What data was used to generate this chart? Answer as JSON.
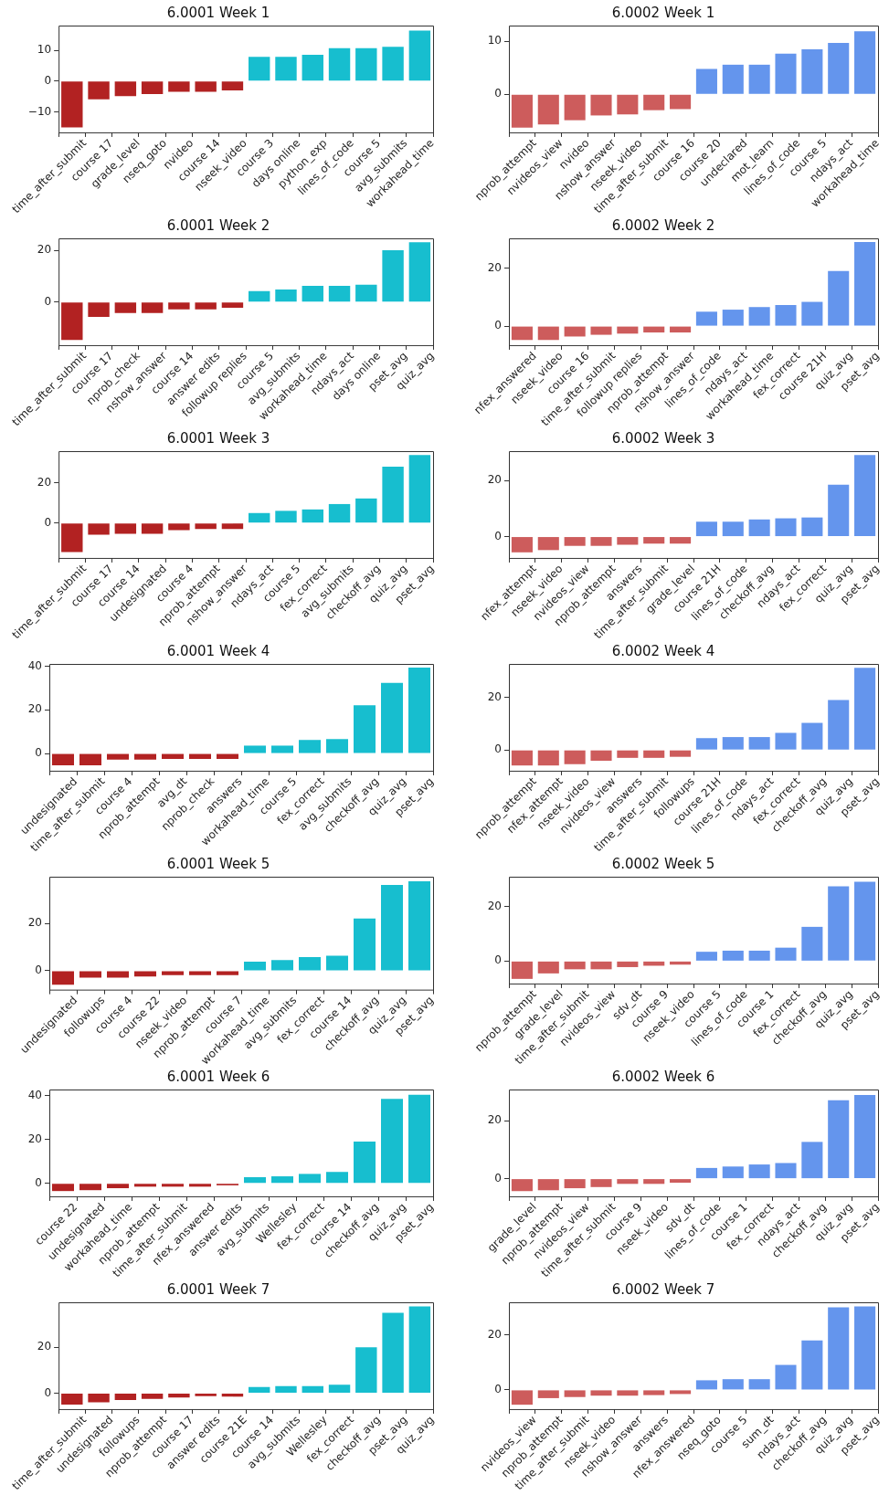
{
  "chart_data": [
    {
      "type": "bar",
      "title": "6.0001 Week 1",
      "categories": [
        "time_after_submit",
        "course 17",
        "grade_level",
        "nseq_goto",
        "nvideo",
        "course 14",
        "nseek_video",
        "course 3",
        "days online",
        "python_exp",
        "lines_of_code",
        "course 5",
        "avg_submits",
        "workahead_time"
      ],
      "values": [
        -15.1,
        -5.9,
        -4.9,
        -4.2,
        -3.5,
        -3.5,
        -3.0,
        7.9,
        7.9,
        8.6,
        10.7,
        10.7,
        11.2,
        16.5
      ],
      "colors": [
        "#b22222",
        "#b22222",
        "#b22222",
        "#b22222",
        "#b22222",
        "#b22222",
        "#b22222",
        "#17becf",
        "#17becf",
        "#17becf",
        "#17becf",
        "#17becf",
        "#17becf",
        "#17becf"
      ],
      "ylim": [
        -16.7,
        18.1
      ],
      "yticks": [
        {
          "value": -10,
          "label": "−10"
        },
        0,
        10
      ],
      "grid": false
    },
    {
      "type": "bar",
      "title": "6.0002 Week 1",
      "categories": [
        "nprob_attempt",
        "nvideos_view",
        "nvideo",
        "nshow_answer",
        "nseek_video",
        "time_after_submit",
        "course 16",
        "course 20",
        "undeclared",
        "mot_learn",
        "lines_of_code",
        "course 5",
        "ndays_act",
        "workahead_time"
      ],
      "values": [
        -6.3,
        -5.7,
        -4.9,
        -4.0,
        -3.8,
        -3.0,
        -2.8,
        4.8,
        5.6,
        5.6,
        7.7,
        8.5,
        9.7,
        11.9
      ],
      "colors": [
        "#cd5c5c",
        "#cd5c5c",
        "#cd5c5c",
        "#cd5c5c",
        "#cd5c5c",
        "#cd5c5c",
        "#cd5c5c",
        "#6495ed",
        "#6495ed",
        "#6495ed",
        "#6495ed",
        "#6495ed",
        "#6495ed",
        "#6495ed"
      ],
      "ylim": [
        -7.2,
        13.0
      ],
      "yticks": [
        0,
        10
      ],
      "grid": false
    },
    {
      "type": "bar",
      "title": "6.0001 Week 2",
      "categories": [
        "time_after_submit",
        "course 17",
        "nprob_check",
        "nshow_answer",
        "course 14",
        "answer edits",
        "followup replies",
        "course 5",
        "avg_submits",
        "workahead_time",
        "ndays_act",
        "days online",
        "pset_avg",
        "quiz_avg"
      ],
      "values": [
        -14.7,
        -5.7,
        -4.2,
        -4.2,
        -2.8,
        -2.8,
        -2.2,
        4.3,
        4.9,
        6.3,
        6.3,
        6.7,
        20.1,
        23.2
      ],
      "colors": [
        "#b22222",
        "#b22222",
        "#b22222",
        "#b22222",
        "#b22222",
        "#b22222",
        "#b22222",
        "#17becf",
        "#17becf",
        "#17becf",
        "#17becf",
        "#17becf",
        "#17becf",
        "#17becf"
      ],
      "ylim": [
        -16.7,
        24.7
      ],
      "yticks": [
        0,
        20
      ],
      "grid": false
    },
    {
      "type": "bar",
      "title": "6.0002 Week 2",
      "categories": [
        "nfex_answered",
        "nseek_video",
        "course 16",
        "time_after_submit",
        "followup replies",
        "nprob_attempt",
        "nshow_answer",
        "lines_of_code",
        "ndays_act",
        "workahead_time",
        "fex_correct",
        "course 21H",
        "quiz_avg",
        "pset_avg"
      ],
      "values": [
        -4.8,
        -4.8,
        -3.6,
        -3.0,
        -2.6,
        -2.2,
        -2.2,
        5.0,
        5.7,
        6.6,
        7.3,
        8.4,
        19.1,
        29.1
      ],
      "colors": [
        "#cd5c5c",
        "#cd5c5c",
        "#cd5c5c",
        "#cd5c5c",
        "#cd5c5c",
        "#cd5c5c",
        "#cd5c5c",
        "#6495ed",
        "#6495ed",
        "#6495ed",
        "#6495ed",
        "#6495ed",
        "#6495ed",
        "#6495ed"
      ],
      "ylim": [
        -6.6,
        30.4
      ],
      "yticks": [
        0,
        20
      ],
      "grid": false
    },
    {
      "type": "bar",
      "title": "6.0001 Week 3",
      "categories": [
        "time_after_submit",
        "course 17",
        "course 14",
        "undesignated",
        "course 4",
        "nprob_attempt",
        "nshow_answer",
        "ndays_act",
        "course 5",
        "fex_correct",
        "avg_submits",
        "checkoff_avg",
        "quiz_avg",
        "pset_avg"
      ],
      "values": [
        -14.6,
        -5.9,
        -5.4,
        -5.4,
        -3.6,
        -3.0,
        -3.0,
        5.0,
        6.1,
        6.8,
        9.5,
        12.3,
        28.2,
        34.1
      ],
      "colors": [
        "#b22222",
        "#b22222",
        "#b22222",
        "#b22222",
        "#b22222",
        "#b22222",
        "#b22222",
        "#17becf",
        "#17becf",
        "#17becf",
        "#17becf",
        "#17becf",
        "#17becf",
        "#17becf"
      ],
      "ylim": [
        -17.5,
        36.0
      ],
      "yticks": [
        0,
        20
      ],
      "grid": false
    },
    {
      "type": "bar",
      "title": "6.0002 Week 3",
      "categories": [
        "nfex_attempt",
        "nseek_video",
        "nvideos_view",
        "nprob_attempt",
        "answers",
        "time_after_submit",
        "grade_level",
        "course 21H",
        "lines_of_code",
        "checkoff_avg",
        "ndays_act",
        "fex_correct",
        "quiz_avg",
        "pset_avg"
      ],
      "values": [
        -5.6,
        -4.8,
        -3.3,
        -3.3,
        -2.9,
        -2.5,
        -2.5,
        5.3,
        5.3,
        6.1,
        6.5,
        6.8,
        18.5,
        29.0
      ],
      "colors": [
        "#cd5c5c",
        "#cd5c5c",
        "#cd5c5c",
        "#cd5c5c",
        "#cd5c5c",
        "#cd5c5c",
        "#cd5c5c",
        "#6495ed",
        "#6495ed",
        "#6495ed",
        "#6495ed",
        "#6495ed",
        "#6495ed",
        "#6495ed"
      ],
      "ylim": [
        -7.6,
        30.4
      ],
      "yticks": [
        0,
        20
      ],
      "grid": false
    },
    {
      "type": "bar",
      "title": "6.0001 Week 4",
      "categories": [
        "undesignated",
        "time_after_submit",
        "course 4",
        "nprob_attempt",
        "avg_dt",
        "nprob_check",
        "answers",
        "workahead_time",
        "course 5",
        "fex_correct",
        "avg_submits",
        "checkoff_avg",
        "quiz_avg",
        "pset_avg"
      ],
      "values": [
        -5.4,
        -5.4,
        -2.8,
        -2.8,
        -2.5,
        -2.5,
        -2.5,
        3.6,
        3.6,
        6.2,
        6.6,
        22.1,
        32.3,
        39.3
      ],
      "colors": [
        "#b22222",
        "#b22222",
        "#b22222",
        "#b22222",
        "#b22222",
        "#b22222",
        "#b22222",
        "#17becf",
        "#17becf",
        "#17becf",
        "#17becf",
        "#17becf",
        "#17becf",
        "#17becf"
      ],
      "ylim": [
        -7.9,
        41.0
      ],
      "yticks": [
        0,
        20,
        40
      ],
      "grid": false
    },
    {
      "type": "bar",
      "title": "6.0002 Week 4",
      "categories": [
        "nprob_attempt",
        "nfex_attempt",
        "nseek_video",
        "nvideos_view",
        "answers",
        "time_after_submit",
        "followups",
        "course 21H",
        "lines_of_code",
        "ndays_act",
        "fex_correct",
        "checkoff_avg",
        "quiz_avg",
        "pset_avg"
      ],
      "values": [
        -5.9,
        -5.9,
        -5.4,
        -4.1,
        -3.0,
        -3.0,
        -2.6,
        4.5,
        4.9,
        4.9,
        6.5,
        10.3,
        19.0,
        31.2
      ],
      "colors": [
        "#cd5c5c",
        "#cd5c5c",
        "#cd5c5c",
        "#cd5c5c",
        "#cd5c5c",
        "#cd5c5c",
        "#cd5c5c",
        "#6495ed",
        "#6495ed",
        "#6495ed",
        "#6495ed",
        "#6495ed",
        "#6495ed",
        "#6495ed"
      ],
      "ylim": [
        -7.9,
        32.7
      ],
      "yticks": [
        0,
        20
      ],
      "grid": false
    },
    {
      "type": "bar",
      "title": "6.0001 Week 5",
      "categories": [
        "undesignated",
        "followups",
        "course 4",
        "course 22",
        "nseek_video",
        "nprob_attempt",
        "course 7",
        "workahead_time",
        "avg_submits",
        "fex_correct",
        "course 14",
        "checkoff_avg",
        "quiz_avg",
        "pset_avg"
      ],
      "values": [
        -5.9,
        -2.9,
        -2.9,
        -2.4,
        -1.9,
        -1.9,
        -1.9,
        3.8,
        4.5,
        5.8,
        6.4,
        22.1,
        36.3,
        37.9
      ],
      "colors": [
        "#b22222",
        "#b22222",
        "#b22222",
        "#b22222",
        "#b22222",
        "#b22222",
        "#b22222",
        "#17becf",
        "#17becf",
        "#17becf",
        "#17becf",
        "#17becf",
        "#17becf",
        "#17becf"
      ],
      "ylim": [
        -8.0,
        39.8
      ],
      "yticks": [
        0,
        20
      ],
      "grid": false
    },
    {
      "type": "bar",
      "title": "6.0002 Week 5",
      "categories": [
        "nprob_attempt",
        "grade_level",
        "time_after_submit",
        "nvideos_view",
        "sdv_dt",
        "course 9",
        "nseek_video",
        "course 5",
        "lines_of_code",
        "course 1",
        "fex_correct",
        "checkoff_avg",
        "quiz_avg",
        "pset_avg"
      ],
      "values": [
        -6.5,
        -4.5,
        -3.0,
        -3.0,
        -2.2,
        -1.7,
        -1.3,
        3.4,
        3.8,
        3.8,
        4.9,
        12.5,
        27.3,
        29.0
      ],
      "colors": [
        "#cd5c5c",
        "#cd5c5c",
        "#cd5c5c",
        "#cd5c5c",
        "#cd5c5c",
        "#cd5c5c",
        "#cd5c5c",
        "#6495ed",
        "#6495ed",
        "#6495ed",
        "#6495ed",
        "#6495ed",
        "#6495ed",
        "#6495ed"
      ],
      "ylim": [
        -8.2,
        30.8
      ],
      "yticks": [
        0,
        20
      ],
      "grid": false
    },
    {
      "type": "bar",
      "title": "6.0001 Week 6",
      "categories": [
        "course 22",
        "undesignated",
        "workahead_time",
        "nprob_attempt",
        "time_after_submit",
        "nfex_answered",
        "answer edits",
        "avg_submits",
        "Wellesley",
        "fex_correct",
        "course 14",
        "checkoff_avg",
        "quiz_avg",
        "pset_avg"
      ],
      "values": [
        -3.5,
        -3.1,
        -2.2,
        -1.5,
        -1.5,
        -1.5,
        -0.9,
        2.8,
        3.2,
        4.3,
        5.2,
        19.0,
        38.4,
        40.3
      ],
      "colors": [
        "#b22222",
        "#b22222",
        "#b22222",
        "#b22222",
        "#b22222",
        "#b22222",
        "#b22222",
        "#17becf",
        "#17becf",
        "#17becf",
        "#17becf",
        "#17becf",
        "#17becf",
        "#17becf"
      ],
      "ylim": [
        -5.9,
        42.7
      ],
      "yticks": [
        0,
        20,
        40
      ],
      "grid": false
    },
    {
      "type": "bar",
      "title": "6.0002 Week 6",
      "categories": [
        "grade_level",
        "nprob_attempt",
        "nvideos_view",
        "time_after_submit",
        "course 9",
        "nseek_video",
        "sdv_dt",
        "lines_of_code",
        "course 1",
        "fex_correct",
        "ndays_act",
        "checkoff_avg",
        "quiz_avg",
        "pset_avg"
      ],
      "values": [
        -4.3,
        -4.0,
        -3.3,
        -2.9,
        -1.8,
        -1.8,
        -1.4,
        3.7,
        4.2,
        4.9,
        5.4,
        12.7,
        27.1,
        28.9
      ],
      "colors": [
        "#cd5c5c",
        "#cd5c5c",
        "#cd5c5c",
        "#cd5c5c",
        "#cd5c5c",
        "#cd5c5c",
        "#cd5c5c",
        "#6495ed",
        "#6495ed",
        "#6495ed",
        "#6495ed",
        "#6495ed",
        "#6495ed",
        "#6495ed"
      ],
      "ylim": [
        -6.1,
        30.8
      ],
      "yticks": [
        0,
        20
      ],
      "grid": false
    },
    {
      "type": "bar",
      "title": "6.0001 Week 7",
      "categories": [
        "time_after_submit",
        "undesignated",
        "followups",
        "nprob_attempt",
        "course 17",
        "answer edits",
        "course 21E",
        "course 14",
        "avg_submits",
        "Wellesley",
        "fex_correct",
        "checkoff_avg",
        "pset_avg",
        "quiz_avg"
      ],
      "values": [
        -4.9,
        -3.9,
        -3.0,
        -2.5,
        -1.9,
        -1.3,
        -1.5,
        2.7,
        3.1,
        3.1,
        3.7,
        19.9,
        34.8,
        37.6
      ],
      "colors": [
        "#b22222",
        "#b22222",
        "#b22222",
        "#b22222",
        "#b22222",
        "#b22222",
        "#b22222",
        "#17becf",
        "#17becf",
        "#17becf",
        "#17becf",
        "#17becf",
        "#17becf",
        "#17becf"
      ],
      "ylim": [
        -6.9,
        39.4
      ],
      "yticks": [
        0,
        20
      ],
      "grid": false
    },
    {
      "type": "bar",
      "title": "6.0002 Week 7",
      "categories": [
        "nvideos_view",
        "nprob_attempt",
        "time_after_submit",
        "nseek_video",
        "nshow_answer",
        "answers",
        "nfex_answered",
        "nseq_goto",
        "course 5",
        "sum_dt",
        "ndays_act",
        "checkoff_avg",
        "quiz_avg",
        "pset_avg"
      ],
      "values": [
        -5.4,
        -3.0,
        -2.6,
        -2.1,
        -2.1,
        -1.9,
        -1.5,
        3.5,
        3.9,
        3.9,
        9.1,
        18.0,
        30.1,
        30.4
      ],
      "colors": [
        "#cd5c5c",
        "#cd5c5c",
        "#cd5c5c",
        "#cd5c5c",
        "#cd5c5c",
        "#cd5c5c",
        "#cd5c5c",
        "#6495ed",
        "#6495ed",
        "#6495ed",
        "#6495ed",
        "#6495ed",
        "#6495ed",
        "#6495ed"
      ],
      "ylim": [
        -7.0,
        31.9
      ],
      "yticks": [
        0,
        20
      ],
      "grid": false
    }
  ]
}
